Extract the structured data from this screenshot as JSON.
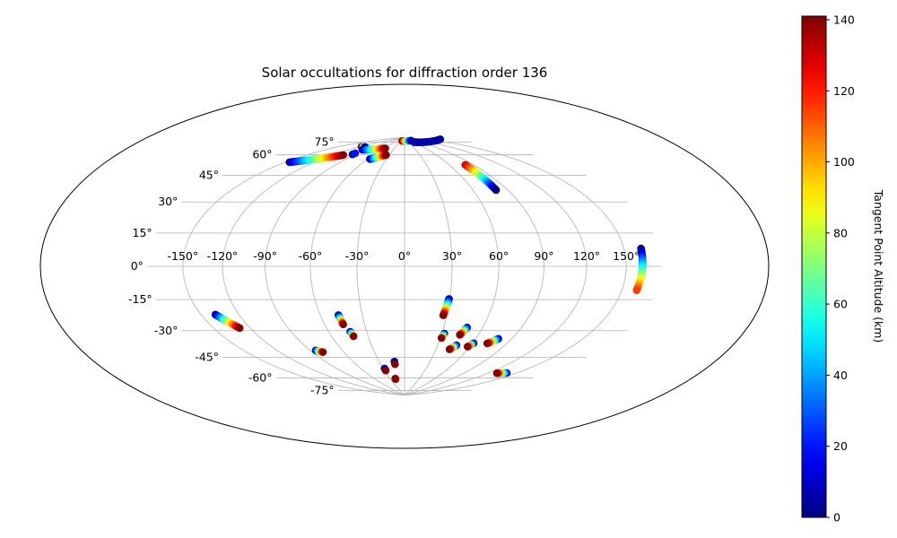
{
  "chart_data": {
    "type": "scatter",
    "projection": "aitoff-hammer",
    "title": "Solar occultations for diffraction order 136",
    "longitude_ticks": [
      {
        "value": -150,
        "label": "-150°"
      },
      {
        "value": -120,
        "label": "-120°"
      },
      {
        "value": -90,
        "label": "-90°"
      },
      {
        "value": -60,
        "label": "-60°"
      },
      {
        "value": -30,
        "label": "-30°"
      },
      {
        "value": 0,
        "label": "0°"
      },
      {
        "value": 30,
        "label": "30°"
      },
      {
        "value": 60,
        "label": "60°"
      },
      {
        "value": 90,
        "label": "90°"
      },
      {
        "value": 120,
        "label": "120°"
      },
      {
        "value": 150,
        "label": "150°"
      }
    ],
    "latitude_ticks": [
      {
        "value": 75,
        "label": "75°"
      },
      {
        "value": 60,
        "label": "60°"
      },
      {
        "value": 45,
        "label": "45°"
      },
      {
        "value": 30,
        "label": "30°"
      },
      {
        "value": 15,
        "label": "15°"
      },
      {
        "value": 0,
        "label": "0°"
      },
      {
        "value": -15,
        "label": "-15°"
      },
      {
        "value": -30,
        "label": "-30°"
      },
      {
        "value": -45,
        "label": "-45°"
      },
      {
        "value": -60,
        "label": "-60°"
      },
      {
        "value": -75,
        "label": "-75°"
      }
    ],
    "grid": true,
    "colorbar": {
      "label": "Tangent Point Altitude (km)",
      "range": [
        0,
        141
      ],
      "ticks": [
        {
          "value": 0,
          "label": "0"
        },
        {
          "value": 20,
          "label": "20"
        },
        {
          "value": 40,
          "label": "40"
        },
        {
          "value": 60,
          "label": "60"
        },
        {
          "value": 80,
          "label": "80"
        },
        {
          "value": 100,
          "label": "100"
        },
        {
          "value": 120,
          "label": "120"
        },
        {
          "value": 140,
          "label": "140"
        }
      ],
      "colormap": "jet"
    },
    "tracks": [
      {
        "start": [
          -146,
          60
        ],
        "end": [
          -106,
          71
        ],
        "alt_start": 5,
        "alt_end": 140
      },
      {
        "start": [
          -116,
          78
        ],
        "end": [
          -109,
          78.5
        ],
        "alt_start": 140,
        "alt_end": 5
      },
      {
        "start": [
          -98,
          76.5
        ],
        "end": [
          -55,
          80
        ],
        "alt_start": 5,
        "alt_end": 140
      },
      {
        "start": [
          -95,
          72.5
        ],
        "end": [
          -95,
          73.5
        ],
        "alt_start": 5,
        "alt_end": 20
      },
      {
        "start": [
          -56,
          71
        ],
        "end": [
          -36,
          75
        ],
        "alt_start": 5,
        "alt_end": 140
      },
      {
        "start": [
          -20,
          87
        ],
        "end": [
          60,
          87
        ],
        "alt_start": 140,
        "alt_end": 5
      },
      {
        "start": [
          60,
          85.5
        ],
        "end": [
          175,
          82
        ],
        "alt_start": 5,
        "alt_end": 5
      },
      {
        "start": [
          80,
          65
        ],
        "end": [
          80,
          47
        ],
        "alt_start": 130,
        "alt_end": 0
      },
      {
        "start": [
          -138.5,
          -25.5
        ],
        "end": [
          -128.5,
          -34
        ],
        "alt_start": 5,
        "alt_end": 140
      },
      {
        "start": [
          164,
          8.5
        ],
        "end": [
          162,
          -11.5
        ],
        "alt_start": 0,
        "alt_end": 115
      },
      {
        "start": [
          -47,
          -30.5
        ],
        "end": [
          -46,
          -36.5
        ],
        "alt_start": 5,
        "alt_end": 140
      },
      {
        "start": [
          -43,
          -41.5
        ],
        "end": [
          -42,
          -44.5
        ],
        "alt_start": 5,
        "alt_end": 140
      },
      {
        "start": [
          -85,
          -52
        ],
        "end": [
          -80,
          -53.5
        ],
        "alt_start": 5,
        "alt_end": 140
      },
      {
        "start": [
          29.5,
          -20.5
        ],
        "end": [
          27.5,
          -31
        ],
        "alt_start": 5,
        "alt_end": 140
      },
      {
        "start": [
          32,
          -43
        ],
        "end": [
          31,
          -46
        ],
        "alt_start": 5,
        "alt_end": 140
      },
      {
        "start": [
          48,
          -38.5
        ],
        "end": [
          45,
          -43.5
        ],
        "alt_start": 5,
        "alt_end": 140
      },
      {
        "start": [
          79,
          -44.5
        ],
        "end": [
          73,
          -48
        ],
        "alt_start": 5,
        "alt_end": 140
      },
      {
        "start": [
          61,
          -48.5
        ],
        "end": [
          58,
          -51
        ],
        "alt_start": 5,
        "alt_end": 140
      },
      {
        "start": [
          47,
          -50.5
        ],
        "end": [
          43,
          -53.5
        ],
        "alt_start": 5,
        "alt_end": 140
      },
      {
        "start": [
          140,
          -63
        ],
        "end": [
          130,
          -64.5
        ],
        "alt_start": 5,
        "alt_end": 140
      },
      {
        "start": [
          -12,
          -63
        ],
        "end": [
          -12,
          -65
        ],
        "alt_start": 5,
        "alt_end": 140
      },
      {
        "start": [
          -28,
          -68
        ],
        "end": [
          -28,
          -69.5
        ],
        "alt_start": 5,
        "alt_end": 140
      },
      {
        "start": [
          -19,
          -76
        ],
        "end": [
          -19,
          -76.5
        ],
        "alt_start": 140,
        "alt_end": 140
      }
    ]
  }
}
